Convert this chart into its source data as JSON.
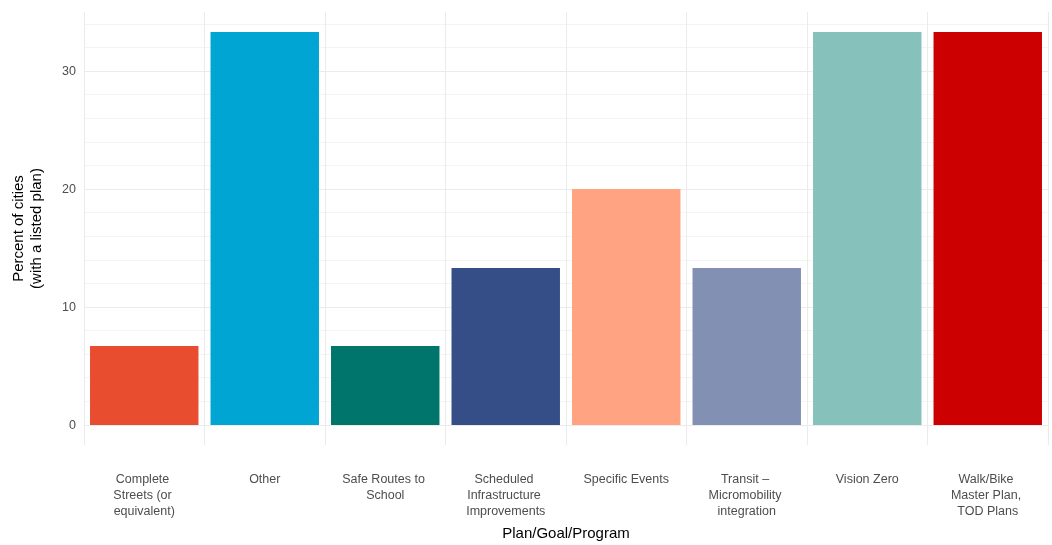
{
  "chart_data": {
    "type": "bar",
    "xlabel": "Plan/Goal/Program",
    "ylabel": "Percent of cities\n(with a listed plan)",
    "categories": [
      "Complete Streets (or equivalent)",
      "Other",
      "Safe Routes to School",
      "Scheduled Infrastructure Improvements",
      "Specific Events",
      "Transit – Micromobility integration",
      "Vision Zero",
      "Walk/Bike Master Plan, TOD Plans"
    ],
    "values": [
      6.7,
      33.3,
      6.7,
      13.3,
      20,
      13.3,
      33.3,
      33.3
    ],
    "colors": [
      "#e84d2f",
      "#00a5d3",
      "#00756c",
      "#364e87",
      "#ffa382",
      "#8190b3",
      "#86c2bb",
      "#cc0000"
    ],
    "ylim": [
      -1.7,
      35
    ],
    "yticks": [
      0,
      10,
      20,
      30
    ],
    "grid": true
  }
}
